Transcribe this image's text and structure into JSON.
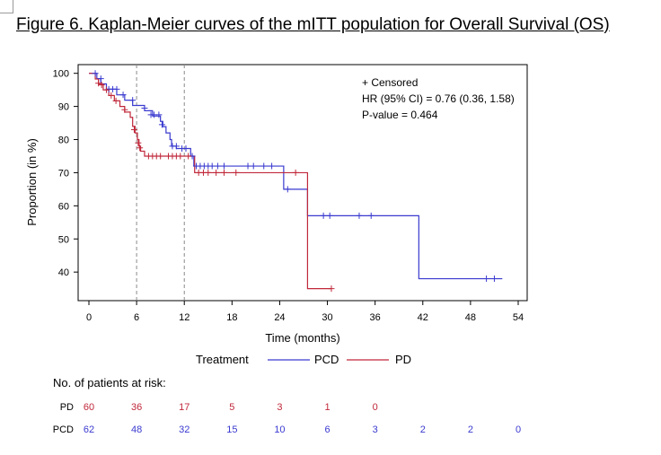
{
  "figure_title": "Figure 6. Kaplan-Meier curves of the mITT population for Overall Survival (OS)",
  "chart_data": {
    "type": "line",
    "step": true,
    "xlabel": "Time (months)",
    "ylabel": "Proportion (in %)",
    "xlim": [
      0,
      54
    ],
    "ylim": [
      33,
      101
    ],
    "x_ticks": [
      0,
      6,
      12,
      18,
      24,
      30,
      36,
      42,
      48,
      54
    ],
    "y_ticks": [
      40,
      50,
      60,
      70,
      80,
      90,
      100
    ],
    "reference_lines_x": [
      6,
      12
    ],
    "annotations": [
      "+ Censored",
      "HR (95% CI) = 0.76 (0.36, 1.58)",
      "P-value = 0.464"
    ],
    "legend": {
      "title": "Treatment",
      "placement": "bottom"
    },
    "series": [
      {
        "name": "PCD",
        "color": "#3a3ad0",
        "steps": [
          [
            0,
            100
          ],
          [
            1,
            98.4
          ],
          [
            1.5,
            96.8
          ],
          [
            2.2,
            95.2
          ],
          [
            3.5,
            93.5
          ],
          [
            4.5,
            91.9
          ],
          [
            5.5,
            90.3
          ],
          [
            7,
            88.7
          ],
          [
            8,
            87.1
          ],
          [
            9,
            85.5
          ],
          [
            9.3,
            83.9
          ],
          [
            9.7,
            82
          ],
          [
            10.2,
            80
          ],
          [
            10.4,
            78
          ],
          [
            11,
            77.3
          ],
          [
            12.2,
            77.3
          ],
          [
            12.8,
            75
          ],
          [
            13.2,
            72
          ],
          [
            24.5,
            65
          ],
          [
            27.5,
            57
          ],
          [
            41.5,
            38
          ],
          [
            52,
            38
          ]
        ],
        "censored": [
          [
            0.8,
            100
          ],
          [
            1.5,
            98.4
          ],
          [
            2.5,
            95.2
          ],
          [
            3,
            95.2
          ],
          [
            3.5,
            95.2
          ],
          [
            4.3,
            93.5
          ],
          [
            5.5,
            91.9
          ],
          [
            7,
            89.5
          ],
          [
            7.8,
            87.5
          ],
          [
            8.2,
            87.5
          ],
          [
            8.8,
            87.5
          ],
          [
            9.2,
            84.5
          ],
          [
            10.5,
            78
          ],
          [
            11,
            78
          ],
          [
            11.7,
            77.3
          ],
          [
            12.2,
            77.3
          ],
          [
            13,
            75
          ],
          [
            13.5,
            72
          ],
          [
            14,
            72
          ],
          [
            14.5,
            72
          ],
          [
            15,
            72
          ],
          [
            15.5,
            72
          ],
          [
            16.2,
            72
          ],
          [
            17,
            72
          ],
          [
            20,
            72
          ],
          [
            20.7,
            72
          ],
          [
            22,
            72
          ],
          [
            23,
            72
          ],
          [
            25,
            65
          ],
          [
            29.5,
            57
          ],
          [
            30.3,
            57
          ],
          [
            34,
            57
          ],
          [
            35.5,
            57
          ],
          [
            50,
            38
          ],
          [
            51,
            38
          ]
        ]
      },
      {
        "name": "PD",
        "color": "#c0283a",
        "steps": [
          [
            0,
            100
          ],
          [
            0.8,
            98.3
          ],
          [
            1.2,
            96.7
          ],
          [
            1.8,
            95
          ],
          [
            2.5,
            93.3
          ],
          [
            3.2,
            91.7
          ],
          [
            3.9,
            90
          ],
          [
            4.5,
            88.3
          ],
          [
            5.2,
            86.7
          ],
          [
            5.5,
            84
          ],
          [
            5.8,
            82
          ],
          [
            6.1,
            80
          ],
          [
            6.3,
            78
          ],
          [
            6.5,
            76.5
          ],
          [
            7,
            75
          ],
          [
            13.3,
            70
          ],
          [
            27.5,
            35
          ],
          [
            30.5,
            35
          ]
        ],
        "censored": [
          [
            1.2,
            97
          ],
          [
            1.6,
            96.5
          ],
          [
            2.2,
            95
          ],
          [
            2.8,
            93.3
          ],
          [
            3.4,
            91.7
          ],
          [
            4.5,
            89
          ],
          [
            5.7,
            83
          ],
          [
            6.2,
            79
          ],
          [
            6.4,
            77.5
          ],
          [
            7.5,
            75
          ],
          [
            8,
            75
          ],
          [
            8.5,
            75
          ],
          [
            9,
            75
          ],
          [
            10,
            75
          ],
          [
            10.5,
            75
          ],
          [
            11,
            75
          ],
          [
            11.5,
            75
          ],
          [
            12.5,
            75
          ],
          [
            13.8,
            70
          ],
          [
            14.4,
            70
          ],
          [
            15,
            70
          ],
          [
            16,
            70
          ],
          [
            17,
            70
          ],
          [
            18.5,
            70
          ],
          [
            26,
            70
          ],
          [
            30.5,
            35
          ]
        ]
      }
    ]
  },
  "risk_table": {
    "title": "No. of patients at risk:",
    "rows": [
      {
        "group": "PD",
        "color": "#c0283a",
        "values": [
          "60",
          "36",
          "17",
          "5",
          "3",
          "1",
          "0"
        ]
      },
      {
        "group": "PCD",
        "color": "#3a3ad0",
        "values": [
          "62",
          "48",
          "32",
          "15",
          "10",
          "6",
          "3",
          "2",
          "2",
          "0"
        ]
      }
    ]
  }
}
